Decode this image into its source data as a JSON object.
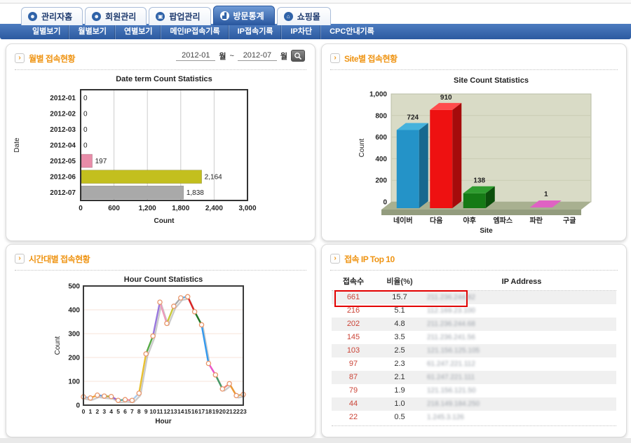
{
  "tabs": {
    "active_index": 3,
    "items": [
      {
        "label": "관리자홈",
        "icon": "admin-home-icon",
        "glyph": "☻"
      },
      {
        "label": "회원관리",
        "icon": "member-manage-icon",
        "glyph": "☻"
      },
      {
        "label": "팝업관리",
        "icon": "popup-manage-icon",
        "glyph": "▣"
      },
      {
        "label": "방문통계",
        "icon": "visit-stats-icon",
        "glyph": "▟"
      },
      {
        "label": "쇼핑몰",
        "icon": "shop-icon",
        "glyph": "⌂"
      }
    ]
  },
  "nav": {
    "items": [
      "일별보기",
      "월별보기",
      "연별보기",
      "메인IP접속기록",
      "IP접속기록",
      "IP차단",
      "CPC안내기록"
    ]
  },
  "icons": {
    "panel_arrow": "›",
    "search": "magnifier-icon"
  },
  "panels": {
    "monthly": {
      "title": "월별 접속현황",
      "date_from": "2012-01",
      "date_to": "2012-07",
      "month_label": "월",
      "tilde": "~"
    },
    "site": {
      "title": "Site별 접속현황"
    },
    "hourly": {
      "title": "시간대별 접속현황"
    },
    "ip": {
      "title": "접속 IP Top 10",
      "columns": [
        "접속수",
        "비율(%)",
        "IP Address"
      ],
      "rows": [
        {
          "count": "661",
          "percent": "15.7",
          "ip": "211.236.244.82",
          "highlighted": true
        },
        {
          "count": "216",
          "percent": "5.1",
          "ip": "112.169.23.100"
        },
        {
          "count": "202",
          "percent": "4.8",
          "ip": "211.236.244.68"
        },
        {
          "count": "145",
          "percent": "3.5",
          "ip": "211.236.241.56"
        },
        {
          "count": "103",
          "percent": "2.5",
          "ip": "121.156.125.105"
        },
        {
          "count": "97",
          "percent": "2.3",
          "ip": "61.247.221.112"
        },
        {
          "count": "87",
          "percent": "2.1",
          "ip": "61.247.221.111"
        },
        {
          "count": "79",
          "percent": "1.9",
          "ip": "121.156.121.50"
        },
        {
          "count": "44",
          "percent": "1.0",
          "ip": "218.149.184.250"
        },
        {
          "count": "22",
          "percent": "0.5",
          "ip": "1.245.3.126"
        }
      ]
    }
  },
  "chart_data": [
    {
      "type": "bar",
      "orientation": "horizontal",
      "title": "Date term Count Statistics",
      "xlabel": "Count",
      "ylabel": "Date",
      "categories": [
        "2012-01",
        "2012-02",
        "2012-03",
        "2012-04",
        "2012-05",
        "2012-06",
        "2012-07"
      ],
      "values": [
        0,
        0,
        0,
        0,
        197,
        2164,
        1838
      ],
      "value_labels": [
        "0",
        "0",
        "0",
        "0",
        "197",
        "2,164",
        "1,838"
      ],
      "xlim": [
        0,
        3000
      ],
      "xticks": [
        0,
        600,
        1200,
        1800,
        2400,
        3000
      ],
      "xtick_labels": [
        "0",
        "600",
        "1,200",
        "1,800",
        "2,400",
        "3,000"
      ],
      "bar_colors": [
        "#e88ca8",
        "#e88ca8",
        "#e88ca8",
        "#e88ca8",
        "#e88ca8",
        "#c3bf1e",
        "#a9a9a9"
      ],
      "grid": "vertical",
      "legend": "none"
    },
    {
      "type": "bar",
      "style": "3d",
      "title": "Site Count Statistics",
      "xlabel": "Site",
      "ylabel": "Count",
      "categories": [
        "네이버",
        "다음",
        "야후",
        "엠파스",
        "파란",
        "구글"
      ],
      "values": [
        724,
        910,
        138,
        0,
        1,
        0
      ],
      "value_labels": [
        "724",
        "910",
        "138",
        "",
        "1",
        ""
      ],
      "ylim": [
        0,
        1000
      ],
      "yticks": [
        0,
        200,
        400,
        600,
        800,
        1000
      ],
      "ytick_labels": [
        "0",
        "200",
        "400",
        "600",
        "800",
        "1,000"
      ],
      "bar_colors": [
        {
          "front": "#2493c8",
          "top": "#45b2dc",
          "side": "#17688f"
        },
        {
          "front": "#ee1111",
          "top": "#ff4c4c",
          "side": "#a50b0b"
        },
        {
          "front": "#157a15",
          "top": "#2f9c2f",
          "side": "#0c4f0c"
        },
        {
          "front": "#888888",
          "top": "#aaaaaa",
          "side": "#666666"
        },
        {
          "front": "#df62c3",
          "top": "#eb85d2",
          "side": "#b13d99"
        },
        {
          "front": "#888888",
          "top": "#aaaaaa",
          "side": "#666666"
        }
      ],
      "plot_bg": "#d9dbc6",
      "floor": "#a8b090",
      "floor_front": "#939c7e",
      "grid": "horizontal",
      "legend": "none"
    },
    {
      "type": "line",
      "title": "Hour Count Statistics",
      "xlabel": "Hour",
      "ylabel": "Count",
      "x": [
        0,
        1,
        2,
        3,
        4,
        5,
        6,
        7,
        8,
        9,
        10,
        11,
        12,
        13,
        14,
        15,
        16,
        17,
        18,
        19,
        20,
        21,
        22,
        23
      ],
      "values": [
        35,
        30,
        42,
        38,
        36,
        20,
        23,
        20,
        50,
        215,
        290,
        432,
        343,
        415,
        450,
        455,
        392,
        337,
        175,
        127,
        68,
        90,
        40,
        45
      ],
      "ylim": [
        0,
        500
      ],
      "yticks": [
        0,
        100,
        200,
        300,
        400,
        500
      ],
      "segment_colors": [
        "#9db6d8",
        "#f0a030",
        "#6699dd",
        "#aaa830",
        "#9966cc",
        "#44aaaa",
        "#ee88aa",
        "#aaccee",
        "#e8c030",
        "#55aa44",
        "#9977dd",
        "#ee99bb",
        "#c8c838",
        "#aaaaaa",
        "#55aaee",
        "#dd2222",
        "#227722",
        "#3399ee",
        "#ee55cc",
        "#449966",
        "#ee8877",
        "#ee9933",
        "#ccaa66"
      ],
      "marker": {
        "fill": "#ffffff",
        "stroke": "#e8956a"
      },
      "gridline_color": "#f7e3da",
      "grid": "horizontal",
      "legend": "none"
    }
  ]
}
